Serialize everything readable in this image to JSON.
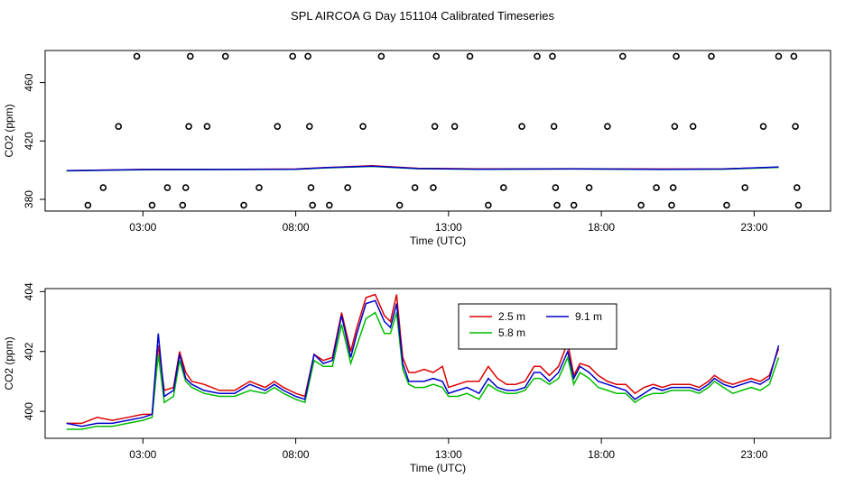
{
  "title": "SPL AIRCOA G  Day 151104  Calibrated Timeseries",
  "chart_data": [
    {
      "type": "scatter+line",
      "xlabel": "Time (UTC)",
      "ylabel": "CO2 (ppm)",
      "xlim": [
        -0.2,
        25.5
      ],
      "ylim": [
        372,
        482
      ],
      "xticks": [
        3,
        8,
        13,
        18,
        23
      ],
      "xtick_labels": [
        "03:00",
        "08:00",
        "13:00",
        "18:00",
        "23:00"
      ],
      "yticks": [
        380,
        420,
        460
      ],
      "ytick_labels": [
        "380",
        "420",
        "460"
      ],
      "calibration_points": [
        {
          "x": 1.2,
          "y": 376
        },
        {
          "x": 1.7,
          "y": 388
        },
        {
          "x": 2.2,
          "y": 430
        },
        {
          "x": 2.8,
          "y": 478
        },
        {
          "x": 3.3,
          "y": 376
        },
        {
          "x": 3.8,
          "y": 388
        },
        {
          "x": 4.3,
          "y": 376
        },
        {
          "x": 4.4,
          "y": 388
        },
        {
          "x": 4.5,
          "y": 430
        },
        {
          "x": 4.55,
          "y": 478
        },
        {
          "x": 5.1,
          "y": 430
        },
        {
          "x": 5.7,
          "y": 478
        },
        {
          "x": 6.3,
          "y": 376
        },
        {
          "x": 6.8,
          "y": 388
        },
        {
          "x": 7.4,
          "y": 430
        },
        {
          "x": 7.9,
          "y": 478
        },
        {
          "x": 8.4,
          "y": 478
        },
        {
          "x": 8.45,
          "y": 430
        },
        {
          "x": 8.5,
          "y": 388
        },
        {
          "x": 8.55,
          "y": 376
        },
        {
          "x": 9.1,
          "y": 376
        },
        {
          "x": 9.7,
          "y": 388
        },
        {
          "x": 10.2,
          "y": 430
        },
        {
          "x": 10.8,
          "y": 478
        },
        {
          "x": 11.4,
          "y": 376
        },
        {
          "x": 11.9,
          "y": 388
        },
        {
          "x": 12.5,
          "y": 388
        },
        {
          "x": 12.55,
          "y": 430
        },
        {
          "x": 12.6,
          "y": 478
        },
        {
          "x": 13.2,
          "y": 430
        },
        {
          "x": 13.7,
          "y": 478
        },
        {
          "x": 14.3,
          "y": 376
        },
        {
          "x": 14.8,
          "y": 388
        },
        {
          "x": 15.4,
          "y": 430
        },
        {
          "x": 15.9,
          "y": 478
        },
        {
          "x": 16.4,
          "y": 478
        },
        {
          "x": 16.45,
          "y": 430
        },
        {
          "x": 16.5,
          "y": 388
        },
        {
          "x": 16.55,
          "y": 376
        },
        {
          "x": 17.1,
          "y": 376
        },
        {
          "x": 17.6,
          "y": 388
        },
        {
          "x": 18.2,
          "y": 430
        },
        {
          "x": 18.7,
          "y": 478
        },
        {
          "x": 19.3,
          "y": 376
        },
        {
          "x": 19.8,
          "y": 388
        },
        {
          "x": 20.3,
          "y": 376
        },
        {
          "x": 20.35,
          "y": 388
        },
        {
          "x": 20.4,
          "y": 430
        },
        {
          "x": 20.45,
          "y": 478
        },
        {
          "x": 21.0,
          "y": 430
        },
        {
          "x": 21.6,
          "y": 478
        },
        {
          "x": 22.1,
          "y": 376
        },
        {
          "x": 22.7,
          "y": 388
        },
        {
          "x": 23.3,
          "y": 430
        },
        {
          "x": 23.8,
          "y": 478
        },
        {
          "x": 24.3,
          "y": 478
        },
        {
          "x": 24.35,
          "y": 430
        },
        {
          "x": 24.4,
          "y": 388
        },
        {
          "x": 24.45,
          "y": 376
        }
      ],
      "baseline_series": [
        {
          "name": "2.5 m",
          "color": "#dd0000",
          "x": [
            0.5,
            3,
            6,
            8,
            9,
            10.5,
            12,
            14,
            17,
            20,
            22,
            23.8
          ],
          "values": [
            399.7,
            400.5,
            400.6,
            400.8,
            401.8,
            403.0,
            401.3,
            400.9,
            401.0,
            400.8,
            400.9,
            402.0
          ]
        },
        {
          "name": "5.8 m",
          "color": "#00bb00",
          "x": [
            0.5,
            3,
            6,
            8,
            9,
            10.5,
            12,
            14,
            17,
            20,
            22,
            23.8
          ],
          "values": [
            399.5,
            400.3,
            400.4,
            400.6,
            401.6,
            402.6,
            401.0,
            400.6,
            400.8,
            400.5,
            400.7,
            401.9
          ]
        },
        {
          "name": "9.1 m",
          "color": "#0000cc",
          "x": [
            0.5,
            3,
            6,
            8,
            9,
            10.5,
            12,
            14,
            17,
            20,
            22,
            23.8
          ],
          "values": [
            399.6,
            400.4,
            400.5,
            400.7,
            401.7,
            402.8,
            401.1,
            400.7,
            400.9,
            400.6,
            400.8,
            402.2
          ]
        }
      ]
    },
    {
      "type": "line",
      "xlabel": "Time (UTC)",
      "ylabel": "CO2 (ppm)",
      "xlim": [
        -0.2,
        25.5
      ],
      "ylim": [
        399.1,
        404.1
      ],
      "xticks": [
        3,
        8,
        13,
        18,
        23
      ],
      "xtick_labels": [
        "03:00",
        "08:00",
        "13:00",
        "18:00",
        "23:00"
      ],
      "yticks": [
        400,
        402,
        404
      ],
      "ytick_labels": [
        "400",
        "402",
        "404"
      ],
      "legend": "top-center",
      "series": [
        {
          "name": "2.5 m",
          "color": "#dd0000",
          "x": [
            0.5,
            1.0,
            1.5,
            2.0,
            2.5,
            3.0,
            3.3,
            3.5,
            3.7,
            4.0,
            4.2,
            4.4,
            4.6,
            5.0,
            5.5,
            6.0,
            6.5,
            7.0,
            7.3,
            7.6,
            8.0,
            8.3,
            8.6,
            8.9,
            9.2,
            9.5,
            9.8,
            10.0,
            10.3,
            10.6,
            10.9,
            11.1,
            11.3,
            11.5,
            11.7,
            11.9,
            12.2,
            12.5,
            12.8,
            13.0,
            13.3,
            13.6,
            14.0,
            14.3,
            14.6,
            14.9,
            15.2,
            15.5,
            15.8,
            16.0,
            16.3,
            16.6,
            16.9,
            17.1,
            17.3,
            17.6,
            17.9,
            18.2,
            18.5,
            18.8,
            19.1,
            19.4,
            19.7,
            20.0,
            20.3,
            20.6,
            20.9,
            21.2,
            21.5,
            21.7,
            22.0,
            22.3,
            22.6,
            22.9,
            23.2,
            23.5,
            23.8
          ],
          "values": [
            399.6,
            399.6,
            399.8,
            399.7,
            399.8,
            399.9,
            399.9,
            402.2,
            400.7,
            400.8,
            402.0,
            401.3,
            401.0,
            400.9,
            400.7,
            400.7,
            401.0,
            400.8,
            401.0,
            400.8,
            400.6,
            400.5,
            401.9,
            401.7,
            401.8,
            403.3,
            402.0,
            402.8,
            403.8,
            403.9,
            403.2,
            403.0,
            403.9,
            401.8,
            401.3,
            401.3,
            401.4,
            401.3,
            401.5,
            400.8,
            400.9,
            401.0,
            401.0,
            401.5,
            401.1,
            400.9,
            400.9,
            401.0,
            401.5,
            401.5,
            401.2,
            401.5,
            402.3,
            401.2,
            401.6,
            401.5,
            401.2,
            401.0,
            400.9,
            400.9,
            400.6,
            400.8,
            400.9,
            400.8,
            400.9,
            400.9,
            400.9,
            400.8,
            401.0,
            401.2,
            401.0,
            400.9,
            401.0,
            401.1,
            401.0,
            401.2,
            402.1
          ]
        },
        {
          "name": "5.8 m",
          "color": "#00bb00",
          "x": [
            0.5,
            1.0,
            1.5,
            2.0,
            2.5,
            3.0,
            3.3,
            3.5,
            3.7,
            4.0,
            4.2,
            4.4,
            4.6,
            5.0,
            5.5,
            6.0,
            6.5,
            7.0,
            7.3,
            7.6,
            8.0,
            8.3,
            8.6,
            8.9,
            9.2,
            9.5,
            9.8,
            10.0,
            10.3,
            10.6,
            10.9,
            11.1,
            11.3,
            11.5,
            11.7,
            11.9,
            12.2,
            12.5,
            12.8,
            13.0,
            13.3,
            13.6,
            14.0,
            14.3,
            14.6,
            14.9,
            15.2,
            15.5,
            15.8,
            16.0,
            16.3,
            16.6,
            16.9,
            17.1,
            17.3,
            17.6,
            17.9,
            18.2,
            18.5,
            18.8,
            19.1,
            19.4,
            19.7,
            20.0,
            20.3,
            20.6,
            20.9,
            21.2,
            21.5,
            21.7,
            22.0,
            22.3,
            22.6,
            22.9,
            23.2,
            23.5,
            23.8
          ],
          "values": [
            399.4,
            399.4,
            399.5,
            399.5,
            399.6,
            399.7,
            399.8,
            401.9,
            400.3,
            400.5,
            401.7,
            401.0,
            400.8,
            400.6,
            400.5,
            400.5,
            400.7,
            400.6,
            400.8,
            400.6,
            400.4,
            400.3,
            401.7,
            401.5,
            401.5,
            402.9,
            401.6,
            402.2,
            403.1,
            403.3,
            402.6,
            402.6,
            403.3,
            401.4,
            400.9,
            400.8,
            400.8,
            400.9,
            400.8,
            400.5,
            400.5,
            400.6,
            400.4,
            400.9,
            400.7,
            400.6,
            400.6,
            400.7,
            401.1,
            401.1,
            400.9,
            401.1,
            401.8,
            400.9,
            401.3,
            401.1,
            400.8,
            400.7,
            400.6,
            400.6,
            400.3,
            400.5,
            400.6,
            400.6,
            400.7,
            400.7,
            400.7,
            400.6,
            400.8,
            401.0,
            400.8,
            400.6,
            400.7,
            400.8,
            400.7,
            400.9,
            401.8
          ]
        },
        {
          "name": "9.1 m",
          "color": "#0000cc",
          "x": [
            0.5,
            1.0,
            1.5,
            2.0,
            2.5,
            3.0,
            3.3,
            3.5,
            3.7,
            4.0,
            4.2,
            4.4,
            4.6,
            5.0,
            5.5,
            6.0,
            6.5,
            7.0,
            7.3,
            7.6,
            8.0,
            8.3,
            8.6,
            8.9,
            9.2,
            9.5,
            9.8,
            10.0,
            10.3,
            10.6,
            10.9,
            11.1,
            11.3,
            11.5,
            11.7,
            11.9,
            12.2,
            12.5,
            12.8,
            13.0,
            13.3,
            13.6,
            14.0,
            14.3,
            14.6,
            14.9,
            15.2,
            15.5,
            15.8,
            16.0,
            16.3,
            16.6,
            16.9,
            17.1,
            17.3,
            17.6,
            17.9,
            18.2,
            18.5,
            18.8,
            19.1,
            19.4,
            19.7,
            20.0,
            20.3,
            20.6,
            20.9,
            21.2,
            21.5,
            21.7,
            22.0,
            22.3,
            22.6,
            22.9,
            23.2,
            23.5,
            23.8
          ],
          "values": [
            399.6,
            399.5,
            399.6,
            399.6,
            399.7,
            399.8,
            399.9,
            402.6,
            400.5,
            400.7,
            401.9,
            401.1,
            400.9,
            400.7,
            400.6,
            400.6,
            400.9,
            400.7,
            400.9,
            400.7,
            400.5,
            400.4,
            401.9,
            401.6,
            401.7,
            403.2,
            401.8,
            402.6,
            403.6,
            403.7,
            403.0,
            402.8,
            403.6,
            401.6,
            401.0,
            401.0,
            401.0,
            401.1,
            401.0,
            400.6,
            400.7,
            400.8,
            400.6,
            401.1,
            400.8,
            400.7,
            400.7,
            400.8,
            401.3,
            401.3,
            401.0,
            401.3,
            402.0,
            401.1,
            401.5,
            401.3,
            401.0,
            400.9,
            400.8,
            400.7,
            400.4,
            400.6,
            400.8,
            400.7,
            400.8,
            400.8,
            400.8,
            400.7,
            400.9,
            401.1,
            400.9,
            400.8,
            400.9,
            401.0,
            400.9,
            401.1,
            402.2
          ]
        }
      ]
    }
  ]
}
